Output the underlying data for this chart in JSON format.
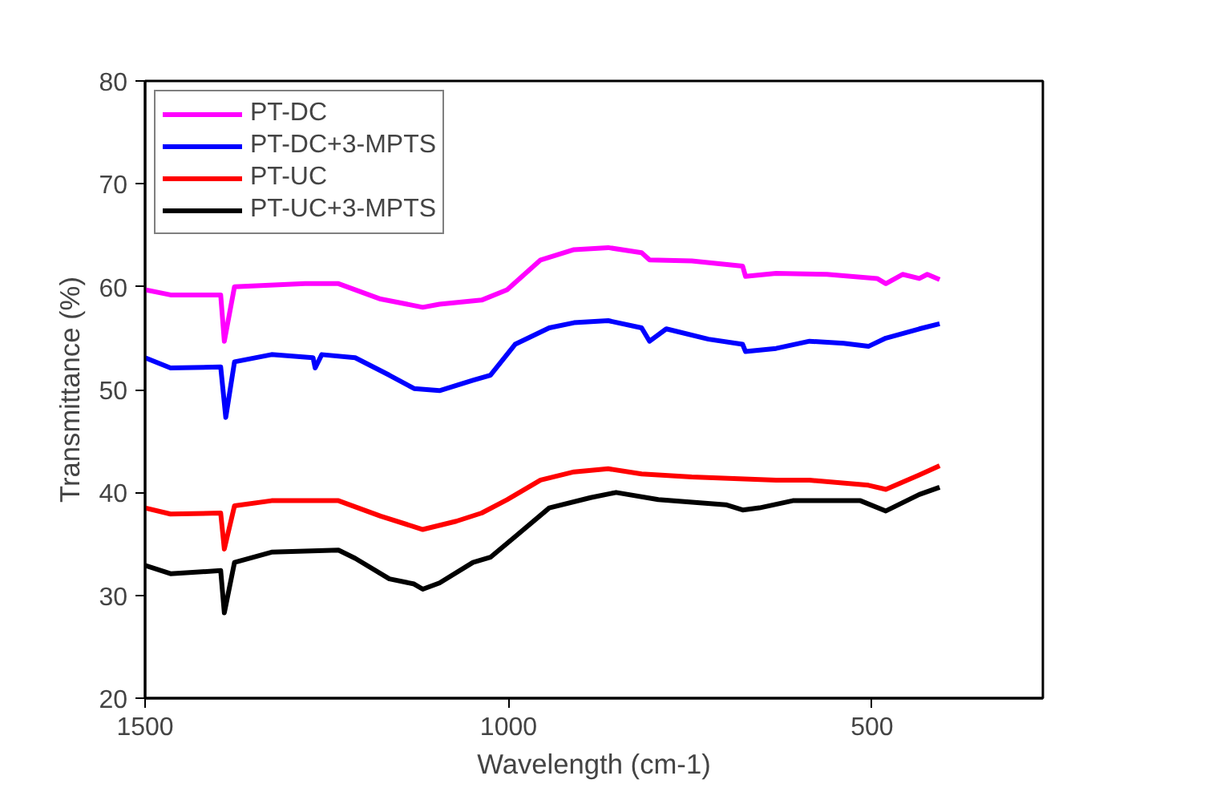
{
  "chart_data": {
    "type": "line",
    "xlabel": "Wavelength (cm-1)",
    "ylabel": "Transmittance (%)",
    "xlim": [
      1500,
      265
    ],
    "xticks": [
      1500,
      1000,
      500
    ],
    "ylim": [
      20,
      80
    ],
    "yticks": [
      20,
      30,
      40,
      50,
      60,
      70,
      80
    ],
    "grid": false,
    "legend": "top left",
    "line_style": "solid",
    "series": [
      {
        "name": "PT-DC",
        "color": "#ff00ff",
        "x": [
          1500,
          1465,
          1396,
          1391,
          1377,
          1280,
          1234,
          1176,
          1118,
          1095,
          1037,
          1002,
          956,
          910,
          863,
          817,
          806,
          748,
          678,
          674,
          632,
          562,
          493,
          481,
          458,
          435,
          424,
          407
        ],
        "values": [
          59.7,
          59.2,
          59.2,
          54.7,
          60.0,
          60.3,
          60.3,
          58.8,
          58.0,
          58.3,
          58.7,
          59.7,
          62.6,
          63.6,
          63.8,
          63.3,
          62.6,
          62.5,
          62.0,
          61.0,
          61.3,
          61.2,
          60.8,
          60.3,
          61.2,
          60.8,
          61.2,
          60.7
        ]
      },
      {
        "name": "PT-DC+3-MPTS",
        "color": "#0000ff",
        "x": [
          1500,
          1465,
          1396,
          1389,
          1377,
          1326,
          1269,
          1266,
          1257,
          1211,
          1164,
          1130,
          1095,
          1049,
          1025,
          991,
          944,
          910,
          863,
          817,
          806,
          783,
          725,
          678,
          674,
          632,
          586,
          539,
          505,
          481,
          435,
          407
        ],
        "values": [
          53.1,
          52.1,
          52.2,
          47.3,
          52.7,
          53.4,
          53.1,
          52.1,
          53.4,
          53.1,
          51.4,
          50.1,
          49.9,
          50.9,
          51.4,
          54.4,
          56.0,
          56.5,
          56.7,
          56.0,
          54.7,
          55.9,
          54.9,
          54.4,
          53.7,
          54.0,
          54.7,
          54.5,
          54.2,
          55.0,
          55.9,
          56.4
        ]
      },
      {
        "name": "PT-UC",
        "color": "#ff0000",
        "x": [
          1500,
          1465,
          1396,
          1391,
          1377,
          1326,
          1234,
          1176,
          1118,
          1072,
          1037,
          1002,
          956,
          910,
          863,
          817,
          748,
          632,
          586,
          505,
          481,
          435,
          407
        ],
        "values": [
          38.5,
          37.9,
          38.0,
          34.5,
          38.7,
          39.2,
          39.2,
          37.7,
          36.4,
          37.2,
          38.0,
          39.3,
          41.2,
          42.0,
          42.3,
          41.8,
          41.5,
          41.2,
          41.2,
          40.7,
          40.3,
          41.7,
          42.6
        ]
      },
      {
        "name": "PT-UC+3-MPTS",
        "color": "#000000",
        "x": [
          1500,
          1465,
          1396,
          1391,
          1377,
          1326,
          1234,
          1211,
          1164,
          1130,
          1118,
          1095,
          1049,
          1025,
          991,
          944,
          887,
          852,
          794,
          701,
          678,
          655,
          609,
          516,
          481,
          435,
          407
        ],
        "values": [
          32.9,
          32.1,
          32.4,
          28.3,
          33.2,
          34.2,
          34.4,
          33.6,
          31.6,
          31.1,
          30.6,
          31.2,
          33.2,
          33.7,
          35.7,
          38.5,
          39.5,
          40.0,
          39.3,
          38.8,
          38.3,
          38.5,
          39.2,
          39.2,
          38.2,
          39.8,
          40.5
        ]
      }
    ]
  }
}
